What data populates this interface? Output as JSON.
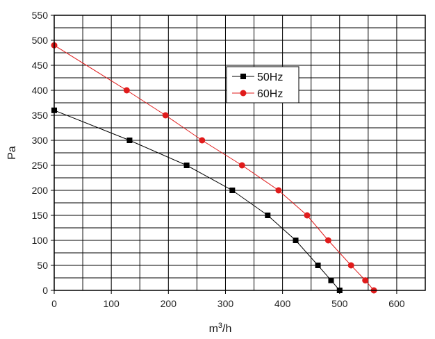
{
  "chart_data": {
    "type": "line",
    "title": "",
    "xlabel": "m",
    "xlabel_superscript": "3",
    "xlabel_suffix": "/h",
    "ylabel": "Pa",
    "xlim": [
      0,
      650
    ],
    "ylim": [
      0,
      550
    ],
    "x_ticks": [
      "0",
      "100",
      "200",
      "300",
      "400",
      "500",
      "600"
    ],
    "y_ticks": [
      "0",
      "50",
      "100",
      "150",
      "200",
      "250",
      "300",
      "350",
      "400",
      "450",
      "500",
      "550"
    ],
    "grid": true,
    "legend_position": "top-center",
    "series": [
      {
        "name": "50Hz",
        "color": "#000000",
        "marker": "square",
        "points": [
          {
            "x": 0,
            "y": 360
          },
          {
            "x": 132,
            "y": 300
          },
          {
            "x": 232,
            "y": 250
          },
          {
            "x": 312,
            "y": 200
          },
          {
            "x": 374,
            "y": 150
          },
          {
            "x": 423,
            "y": 100
          },
          {
            "x": 462,
            "y": 50
          },
          {
            "x": 485,
            "y": 20
          },
          {
            "x": 500,
            "y": 0
          }
        ]
      },
      {
        "name": "60Hz",
        "color": "#e01b1b",
        "marker": "circle",
        "points": [
          {
            "x": 0,
            "y": 490
          },
          {
            "x": 127,
            "y": 400
          },
          {
            "x": 195,
            "y": 350
          },
          {
            "x": 259,
            "y": 300
          },
          {
            "x": 329,
            "y": 250
          },
          {
            "x": 393,
            "y": 200
          },
          {
            "x": 443,
            "y": 150
          },
          {
            "x": 480,
            "y": 100
          },
          {
            "x": 520,
            "y": 50
          },
          {
            "x": 545,
            "y": 20
          },
          {
            "x": 560,
            "y": 0
          }
        ]
      }
    ]
  }
}
